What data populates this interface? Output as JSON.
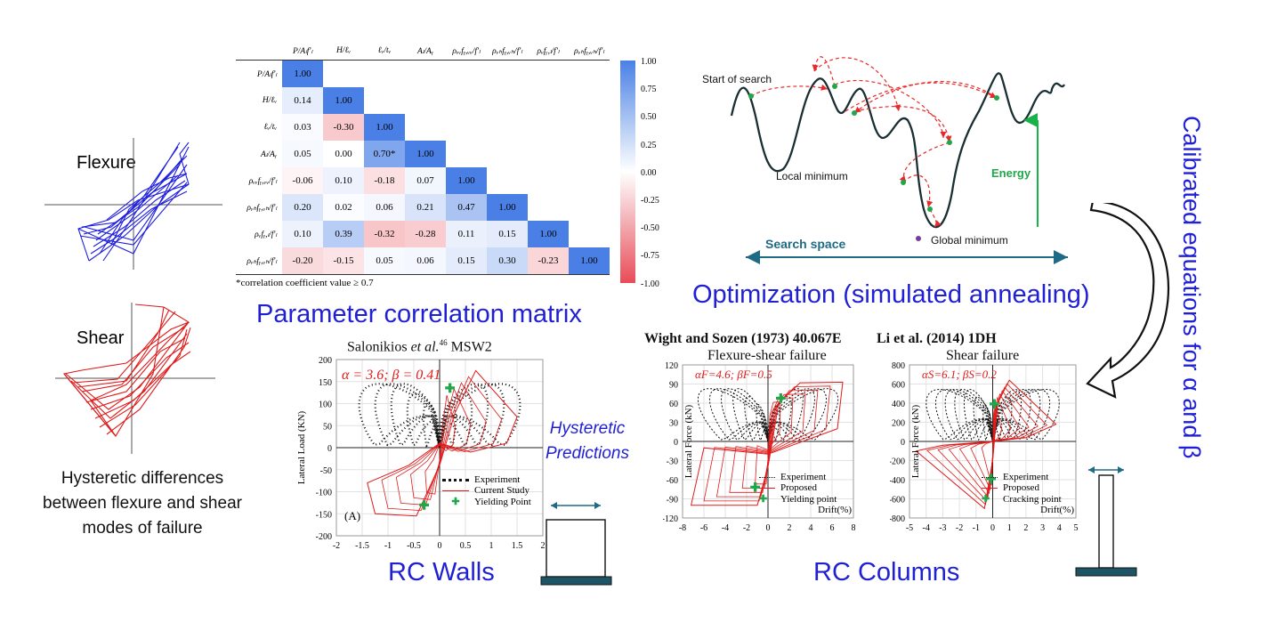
{
  "left": {
    "flexure_label": "Flexure",
    "shear_label": "Shear",
    "caption_lines": [
      "Hysteretic differences",
      "between flexure and shear",
      "modes of failure"
    ]
  },
  "matrix": {
    "title": "Parameter correlation matrix",
    "footnote": "*correlation coefficient value ≥ 0.7",
    "labels": [
      "P/Aₗf'ₗ",
      "H/ℓᵥ",
      "ℓᵥ/tᵥ",
      "Aₗ/Aᵧ",
      "ρᵥᵥfᵧ,ᵥᵥ/f'ₗ",
      "ρᵥₕfᵧ,ᵥₕ/f'ₗ",
      "ρᵥfᵧ,ₗ/f'ₗ",
      "ρᵥₕfᵧ,ᵥₕ/f'ₗ"
    ],
    "cells": [
      [
        "1.00"
      ],
      [
        "0.14",
        "1.00"
      ],
      [
        "0.03",
        "-0.30",
        "1.00"
      ],
      [
        "0.05",
        "0.00",
        "0.70*",
        "1.00"
      ],
      [
        "-0.06",
        "0.10",
        "-0.18",
        "0.07",
        "1.00"
      ],
      [
        "0.20",
        "0.02",
        "0.06",
        "0.21",
        "0.47",
        "1.00"
      ],
      [
        "0.10",
        "0.39",
        "-0.32",
        "-0.28",
        "0.11",
        "0.15",
        "1.00"
      ],
      [
        "-0.20",
        "-0.15",
        "0.05",
        "0.06",
        "0.15",
        "0.30",
        "-0.23",
        "1.00"
      ]
    ],
    "colorbar_ticks": [
      "1.00",
      "0.75",
      "0.50",
      "0.25",
      "0.00",
      "-0.25",
      "-0.50",
      "-0.75",
      "-1.00"
    ]
  },
  "optimization": {
    "title": "Optimization (simulated annealing)",
    "start_label": "Start of search",
    "local_min_label": "Local minimum",
    "global_min_label": "Global minimum",
    "energy_label": "Energy",
    "search_space_label": "Search space"
  },
  "calibrated_label": "Calibrated equations for α and β",
  "hysteretic_predictions": [
    "Hysteretic",
    "Predictions"
  ],
  "walls": {
    "section_label": "RC Walls",
    "chart_title": "Salonikios et al.46 MSW2",
    "param_text": "α = 3.6; β = 0.41",
    "panel_tag": "(A)",
    "legend": [
      "Experiment",
      "Current Study",
      "Yielding Point"
    ]
  },
  "columns": {
    "section_label": "RC Columns",
    "left_title": "Wight and Sozen (1973) 40.067E",
    "left_subtitle": "Flexure-shear failure",
    "left_param": "αF=4.6; βF=0.5",
    "left_legend": [
      "Experiment",
      "Proposed",
      "Yielding point"
    ],
    "right_title": "Li et al. (2014) 1DH",
    "right_subtitle": "Shear failure",
    "right_param": "αS=6.1; βS=0.2",
    "right_legend": [
      "Experiment",
      "Proposed",
      "Cracking point"
    ]
  },
  "chart_data": [
    {
      "type": "heatmap",
      "title": "Parameter correlation matrix",
      "rows": 8,
      "values": [
        [
          1.0
        ],
        [
          0.14,
          1.0
        ],
        [
          0.03,
          -0.3,
          1.0
        ],
        [
          0.05,
          0.0,
          0.7,
          1.0
        ],
        [
          -0.06,
          0.1,
          -0.18,
          0.07,
          1.0
        ],
        [
          0.2,
          0.02,
          0.06,
          0.21,
          0.47,
          1.0
        ],
        [
          0.1,
          0.39,
          -0.32,
          -0.28,
          0.11,
          0.15,
          1.0
        ],
        [
          -0.2,
          -0.15,
          0.05,
          0.06,
          0.15,
          0.3,
          -0.23,
          1.0
        ]
      ],
      "colorbar_range": [
        -1.0,
        1.0
      ]
    },
    {
      "type": "line",
      "title": "Salonikios et al.46 MSW2",
      "ylabel": "Lateral Load (KN)",
      "xlim": [
        -2,
        2
      ],
      "ylim": [
        -200,
        200
      ],
      "xticks": [
        "-2",
        "-1.5",
        "-1",
        "-0.5",
        "0",
        "0.5",
        "1",
        "1.5",
        "2"
      ],
      "yticks": [
        "200",
        "150",
        "100",
        "50",
        "0",
        "-50",
        "-100",
        "-150",
        "-200"
      ],
      "series": [
        {
          "name": "Experiment"
        },
        {
          "name": "Current Study"
        },
        {
          "name": "Yielding Point"
        }
      ]
    },
    {
      "type": "line",
      "title": "Wight and Sozen (1973) 40.067E",
      "xlabel": "Drift(%)",
      "ylabel": "Lateral Force (kN)",
      "xlim": [
        -8,
        8
      ],
      "ylim": [
        -120,
        120
      ],
      "xticks": [
        "-8",
        "-6",
        "-4",
        "-2",
        "0",
        "2",
        "4",
        "6",
        "8"
      ],
      "yticks": [
        "120",
        "90",
        "60",
        "30",
        "0",
        "-30",
        "-60",
        "-90",
        "-120"
      ],
      "series": [
        {
          "name": "Experiment"
        },
        {
          "name": "Proposed"
        },
        {
          "name": "Yielding point"
        }
      ]
    },
    {
      "type": "line",
      "title": "Li et al. (2014) 1DH",
      "xlabel": "Drift(%)",
      "ylabel": "Lateral Force (kN)",
      "xlim": [
        -5,
        5
      ],
      "ylim": [
        -800,
        800
      ],
      "xticks": [
        "-5",
        "-4",
        "-3",
        "-2",
        "-1",
        "0",
        "1",
        "2",
        "3",
        "4",
        "5"
      ],
      "yticks": [
        "800",
        "600",
        "400",
        "200",
        "0",
        "-200",
        "-400",
        "-600",
        "-800"
      ],
      "series": [
        {
          "name": "Experiment"
        },
        {
          "name": "Proposed"
        },
        {
          "name": "Cracking point"
        }
      ]
    }
  ]
}
